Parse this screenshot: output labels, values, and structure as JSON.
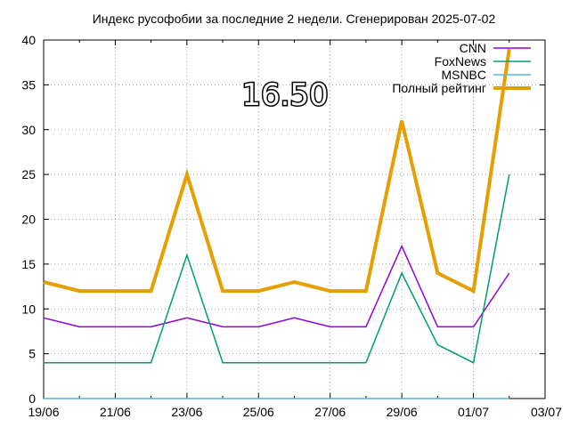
{
  "chart_data": {
    "type": "line",
    "title": "Индекс русофобии за последние 2 недели. Сгенерирован 2025-07-02",
    "overlay_value": "16.50",
    "xlabel": "",
    "ylabel": "",
    "grid": true,
    "legend_position": "top-right",
    "x_tick_labels": [
      "19/06",
      "21/06",
      "23/06",
      "25/06",
      "27/06",
      "29/06",
      "01/07",
      "03/07"
    ],
    "y_tick_labels": [
      "0",
      "5",
      "10",
      "15",
      "20",
      "25",
      "30",
      "35",
      "40"
    ],
    "ylim": [
      0,
      40
    ],
    "xlim": [
      "2025-06-19",
      "2025-07-03"
    ],
    "x": [
      "2025-06-19",
      "2025-06-20",
      "2025-06-21",
      "2025-06-22",
      "2025-06-23",
      "2025-06-24",
      "2025-06-25",
      "2025-06-26",
      "2025-06-27",
      "2025-06-28",
      "2025-06-29",
      "2025-06-30",
      "2025-07-01",
      "2025-07-02"
    ],
    "series": [
      {
        "name": "CNN",
        "color": "#9400d3",
        "width": 1.5,
        "values": [
          9,
          8,
          8,
          8,
          9,
          8,
          8,
          9,
          8,
          8,
          17,
          8,
          8,
          14
        ]
      },
      {
        "name": "FoxNews",
        "color": "#009e73",
        "width": 1.5,
        "values": [
          4,
          4,
          4,
          4,
          16,
          4,
          4,
          4,
          4,
          4,
          14,
          6,
          4,
          25
        ]
      },
      {
        "name": "MSNBC",
        "color": "#56b4e9",
        "width": 1.5,
        "values": [
          0,
          0,
          0,
          0,
          0,
          0,
          0,
          0,
          0,
          0,
          0,
          0,
          0,
          0
        ]
      },
      {
        "name": "Полный рейтинг",
        "color": "#e69f00",
        "width": 4,
        "values": [
          13,
          12,
          12,
          12,
          25,
          12,
          12,
          13,
          12,
          12,
          31,
          14,
          12,
          39
        ]
      }
    ]
  }
}
